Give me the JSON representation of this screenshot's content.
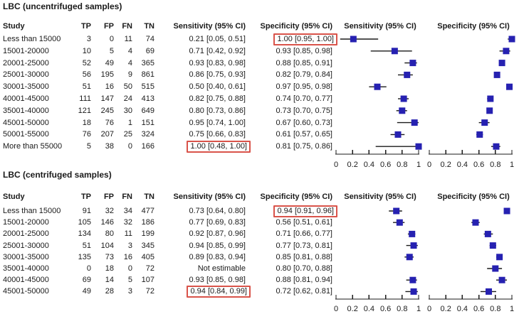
{
  "colors": {
    "square": "#2621b1",
    "ci_line": "#1a1a1a",
    "axis": "#1a1a1a",
    "highlight_box": "#d9534a",
    "text": "#1a1a1a"
  },
  "chart_data": [
    {
      "type": "forest",
      "title": "LBC (uncentrifuged samples)",
      "columns": {
        "study": "Study",
        "tp": "TP",
        "fp": "FP",
        "fn": "FN",
        "tn": "TN",
        "sensitivity": "Sensitivity (95% CI)",
        "specificity": "Specificity (95% CI)"
      },
      "plot_headers": {
        "sensitivity": "Sensitivity (95% CI)",
        "specificity": "Specificity (95% CI)"
      },
      "axis": {
        "min": 0,
        "max": 1,
        "ticks": [
          "0",
          "0.2",
          "0.4",
          "0.6",
          "0.8",
          "1"
        ]
      },
      "rows": [
        {
          "study": "Less than 15000",
          "tp": "3",
          "fp": "0",
          "fn": "11",
          "tn": "74",
          "sensitivity_text": "0.21 [0.05, 0.51]",
          "specificity_text": "1.00 [0.95, 1.00]",
          "sensitivity": {
            "est": 0.21,
            "lo": 0.05,
            "hi": 0.51
          },
          "specificity": {
            "est": 1.0,
            "lo": 0.95,
            "hi": 1.0
          },
          "highlight_sensitivity": false,
          "highlight_specificity": true
        },
        {
          "study": "15001-20000",
          "tp": "10",
          "fp": "5",
          "fn": "4",
          "tn": "69",
          "sensitivity_text": "0.71 [0.42, 0.92]",
          "specificity_text": "0.93 [0.85, 0.98]",
          "sensitivity": {
            "est": 0.71,
            "lo": 0.42,
            "hi": 0.92
          },
          "specificity": {
            "est": 0.93,
            "lo": 0.85,
            "hi": 0.98
          },
          "highlight_sensitivity": false,
          "highlight_specificity": false
        },
        {
          "study": "20001-25000",
          "tp": "52",
          "fp": "49",
          "fn": "4",
          "tn": "365",
          "sensitivity_text": "0.93 [0.83, 0.98]",
          "specificity_text": "0.88 [0.85, 0.91]",
          "sensitivity": {
            "est": 0.93,
            "lo": 0.83,
            "hi": 0.98
          },
          "specificity": {
            "est": 0.88,
            "lo": 0.85,
            "hi": 0.91
          },
          "highlight_sensitivity": false,
          "highlight_specificity": false
        },
        {
          "study": "25001-30000",
          "tp": "56",
          "fp": "195",
          "fn": "9",
          "tn": "861",
          "sensitivity_text": "0.86 [0.75, 0.93]",
          "specificity_text": "0.82 [0.79, 0.84]",
          "sensitivity": {
            "est": 0.86,
            "lo": 0.75,
            "hi": 0.93
          },
          "specificity": {
            "est": 0.82,
            "lo": 0.79,
            "hi": 0.84
          },
          "highlight_sensitivity": false,
          "highlight_specificity": false
        },
        {
          "study": "30001-35000",
          "tp": "51",
          "fp": "16",
          "fn": "50",
          "tn": "515",
          "sensitivity_text": "0.50 [0.40, 0.61]",
          "specificity_text": "0.97 [0.95, 0.98]",
          "sensitivity": {
            "est": 0.5,
            "lo": 0.4,
            "hi": 0.61
          },
          "specificity": {
            "est": 0.97,
            "lo": 0.95,
            "hi": 0.98
          },
          "highlight_sensitivity": false,
          "highlight_specificity": false
        },
        {
          "study": "40001-45000",
          "tp": "111",
          "fp": "147",
          "fn": "24",
          "tn": "413",
          "sensitivity_text": "0.82 [0.75, 0.88]",
          "specificity_text": "0.74 [0.70, 0.77]",
          "sensitivity": {
            "est": 0.82,
            "lo": 0.75,
            "hi": 0.88
          },
          "specificity": {
            "est": 0.74,
            "lo": 0.7,
            "hi": 0.77
          },
          "highlight_sensitivity": false,
          "highlight_specificity": false
        },
        {
          "study": "35001-40000",
          "tp": "121",
          "fp": "245",
          "fn": "30",
          "tn": "649",
          "sensitivity_text": "0.80 [0.73, 0.86]",
          "specificity_text": "0.73 [0.70, 0.75]",
          "sensitivity": {
            "est": 0.8,
            "lo": 0.73,
            "hi": 0.86
          },
          "specificity": {
            "est": 0.73,
            "lo": 0.7,
            "hi": 0.75
          },
          "highlight_sensitivity": false,
          "highlight_specificity": false
        },
        {
          "study": "45001-50000",
          "tp": "18",
          "fp": "76",
          "fn": "1",
          "tn": "151",
          "sensitivity_text": "0.95 [0.74, 1.00]",
          "specificity_text": "0.67 [0.60, 0.73]",
          "sensitivity": {
            "est": 0.95,
            "lo": 0.74,
            "hi": 1.0
          },
          "specificity": {
            "est": 0.67,
            "lo": 0.6,
            "hi": 0.73
          },
          "highlight_sensitivity": false,
          "highlight_specificity": false
        },
        {
          "study": "50001-55000",
          "tp": "76",
          "fp": "207",
          "fn": "25",
          "tn": "324",
          "sensitivity_text": "0.75 [0.66, 0.83]",
          "specificity_text": "0.61 [0.57, 0.65]",
          "sensitivity": {
            "est": 0.75,
            "lo": 0.66,
            "hi": 0.83
          },
          "specificity": {
            "est": 0.61,
            "lo": 0.57,
            "hi": 0.65
          },
          "highlight_sensitivity": false,
          "highlight_specificity": false
        },
        {
          "study": "More than 55000",
          "tp": "5",
          "fp": "38",
          "fn": "0",
          "tn": "166",
          "sensitivity_text": "1.00 [0.48, 1.00]",
          "specificity_text": "0.81 [0.75, 0.86]",
          "sensitivity": {
            "est": 1.0,
            "lo": 0.48,
            "hi": 1.0
          },
          "specificity": {
            "est": 0.81,
            "lo": 0.75,
            "hi": 0.86
          },
          "highlight_sensitivity": true,
          "highlight_specificity": false
        }
      ]
    },
    {
      "type": "forest",
      "title": "LBC (centrifuged samples)",
      "columns": {
        "study": "Study",
        "tp": "TP",
        "fp": "FP",
        "fn": "FN",
        "tn": "TN",
        "sensitivity": "Sensitivity (95% CI)",
        "specificity": "Specificity (95% CI)"
      },
      "plot_headers": {
        "sensitivity": "Sensitivity (95% CI)",
        "specificity": "Specificity (95% CI)"
      },
      "axis": {
        "min": 0,
        "max": 1,
        "ticks": [
          "0",
          "0.2",
          "0.4",
          "0.6",
          "0.8",
          "1"
        ]
      },
      "rows": [
        {
          "study": "Less than 15000",
          "tp": "91",
          "fp": "32",
          "fn": "34",
          "tn": "477",
          "sensitivity_text": "0.73 [0.64, 0.80]",
          "specificity_text": "0.94 [0.91, 0.96]",
          "sensitivity": {
            "est": 0.73,
            "lo": 0.64,
            "hi": 0.8
          },
          "specificity": {
            "est": 0.94,
            "lo": 0.91,
            "hi": 0.96
          },
          "highlight_sensitivity": false,
          "highlight_specificity": true
        },
        {
          "study": "15001-20000",
          "tp": "105",
          "fp": "146",
          "fn": "32",
          "tn": "186",
          "sensitivity_text": "0.77 [0.69, 0.83]",
          "specificity_text": "0.56 [0.51, 0.61]",
          "sensitivity": {
            "est": 0.77,
            "lo": 0.69,
            "hi": 0.83
          },
          "specificity": {
            "est": 0.56,
            "lo": 0.51,
            "hi": 0.61
          },
          "highlight_sensitivity": false,
          "highlight_specificity": false
        },
        {
          "study": "20001-25000",
          "tp": "134",
          "fp": "80",
          "fn": "11",
          "tn": "199",
          "sensitivity_text": "0.92 [0.87, 0.96]",
          "specificity_text": "0.71 [0.66, 0.77]",
          "sensitivity": {
            "est": 0.92,
            "lo": 0.87,
            "hi": 0.96
          },
          "specificity": {
            "est": 0.71,
            "lo": 0.66,
            "hi": 0.77
          },
          "highlight_sensitivity": false,
          "highlight_specificity": false
        },
        {
          "study": "25001-30000",
          "tp": "51",
          "fp": "104",
          "fn": "3",
          "tn": "345",
          "sensitivity_text": "0.94 [0.85, 0.99]",
          "specificity_text": "0.77 [0.73, 0.81]",
          "sensitivity": {
            "est": 0.94,
            "lo": 0.85,
            "hi": 0.99
          },
          "specificity": {
            "est": 0.77,
            "lo": 0.73,
            "hi": 0.81
          },
          "highlight_sensitivity": false,
          "highlight_specificity": false
        },
        {
          "study": "30001-35000",
          "tp": "135",
          "fp": "73",
          "fn": "16",
          "tn": "405",
          "sensitivity_text": "0.89 [0.83, 0.94]",
          "specificity_text": "0.85 [0.81, 0.88]",
          "sensitivity": {
            "est": 0.89,
            "lo": 0.83,
            "hi": 0.94
          },
          "specificity": {
            "est": 0.85,
            "lo": 0.81,
            "hi": 0.88
          },
          "highlight_sensitivity": false,
          "highlight_specificity": false
        },
        {
          "study": "35001-40000",
          "tp": "0",
          "fp": "18",
          "fn": "0",
          "tn": "72",
          "sensitivity_text": "Not estimable",
          "specificity_text": "0.80 [0.70, 0.88]",
          "sensitivity": null,
          "specificity": {
            "est": 0.8,
            "lo": 0.7,
            "hi": 0.88
          },
          "highlight_sensitivity": false,
          "highlight_specificity": false
        },
        {
          "study": "40001-45000",
          "tp": "69",
          "fp": "14",
          "fn": "5",
          "tn": "107",
          "sensitivity_text": "0.93 [0.85, 0.98]",
          "specificity_text": "0.88 [0.81, 0.94]",
          "sensitivity": {
            "est": 0.93,
            "lo": 0.85,
            "hi": 0.98
          },
          "specificity": {
            "est": 0.88,
            "lo": 0.81,
            "hi": 0.94
          },
          "highlight_sensitivity": false,
          "highlight_specificity": false
        },
        {
          "study": "45001-50000",
          "tp": "49",
          "fp": "28",
          "fn": "3",
          "tn": "72",
          "sensitivity_text": "0.94 [0.84, 0.99]",
          "specificity_text": "0.72 [0.62, 0.81]",
          "sensitivity": {
            "est": 0.94,
            "lo": 0.84,
            "hi": 0.99
          },
          "specificity": {
            "est": 0.72,
            "lo": 0.62,
            "hi": 0.81
          },
          "highlight_sensitivity": true,
          "highlight_specificity": false
        }
      ]
    }
  ]
}
